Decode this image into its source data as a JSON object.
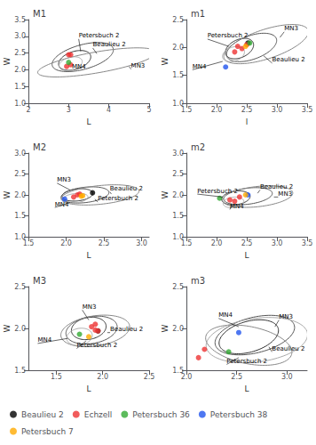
{
  "chart_data": [
    {
      "type": "scatter",
      "title": "M1",
      "xlabel": "L",
      "ylabel": "W",
      "xlim": [
        2,
        5
      ],
      "ylim": [
        1.0,
        3.5
      ],
      "xticks": [
        2,
        3,
        4,
        5
      ],
      "yticks": [
        {
          "value": 1.0,
          "label": "1.0"
        },
        1.5,
        {
          "value": 2.0,
          "label": "2.0"
        },
        2.5,
        {
          "value": 3.0,
          "label": "3.0"
        },
        3.5
      ],
      "grid": false,
      "legend": "lower left",
      "marker": "circle",
      "series": [
        {
          "name": "Beaulieu 2",
          "color": "#000000",
          "x": [],
          "y": []
        },
        {
          "name": "Echzell",
          "color": "#ee3333",
          "x": [
            3.0,
            3.05,
            3.05,
            2.95
          ],
          "y": [
            2.45,
            2.45,
            2.15,
            2.1
          ]
        },
        {
          "name": "Petersbuch 36",
          "color": "#33aa33",
          "x": [
            3.0
          ],
          "y": [
            2.22
          ]
        },
        {
          "name": "Petersbuch 38",
          "color": "#2255ee",
          "x": [],
          "y": []
        },
        {
          "name": "Petersbuch 7",
          "color": "#ffaa00",
          "x": [],
          "y": []
        }
      ],
      "ellipses": [
        {
          "cx": 3.15,
          "cy": 2.28,
          "w": 0.85,
          "h": 0.52,
          "angle": 25,
          "color": "#333333"
        },
        {
          "cx": 3.35,
          "cy": 2.38,
          "w": 1.6,
          "h": 0.72,
          "angle": 20,
          "color": "#555555"
        },
        {
          "cx": 3.7,
          "cy": 2.22,
          "w": 3.0,
          "h": 0.62,
          "angle": 12,
          "color": "#888888"
        },
        {
          "cx": 3.05,
          "cy": 2.18,
          "w": 0.6,
          "h": 0.38,
          "angle": 22,
          "color": "#aaaaaa"
        }
      ],
      "annotations": [
        {
          "text": "Petersbuch 2",
          "x": 3.25,
          "y": 2.92,
          "point_x": 3.3,
          "point_y": 2.55
        },
        {
          "text": "Beaulieu 2",
          "x": 3.6,
          "y": 2.65,
          "point_x": 3.7,
          "point_y": 2.48
        },
        {
          "text": "MN3",
          "x": 4.55,
          "y": 2.02,
          "point_x": 4.5,
          "point_y": 2.1
        },
        {
          "text": "MN4",
          "x": 3.08,
          "y": 2.0
        }
      ]
    },
    {
      "type": "scatter",
      "title": "m1",
      "xlabel": "l",
      "ylabel": "W",
      "xlim": [
        1.5,
        3.5
      ],
      "ylim": [
        1.0,
        2.5
      ],
      "xticks": [
        1.5,
        {
          "value": 2.0,
          "label": "2.0"
        },
        2.5,
        {
          "value": 3.0,
          "label": "3.0"
        },
        3.5
      ],
      "yticks": [
        {
          "value": 1.0,
          "label": "1.0"
        },
        1.5,
        {
          "value": 2.0,
          "label": "2.0"
        },
        2.5
      ],
      "grid": false,
      "legend": "lower left",
      "marker": "circle",
      "series": [
        {
          "name": "Beaulieu 2",
          "color": "#000000",
          "x": [
            2.52
          ],
          "y": [
            2.08
          ]
        },
        {
          "name": "Echzell",
          "color": "#ee3333",
          "x": [
            2.35,
            2.42,
            2.3,
            2.5
          ],
          "y": [
            2.02,
            1.98,
            1.92,
            2.05
          ]
        },
        {
          "name": "Petersbuch 36",
          "color": "#33aa33",
          "x": [
            2.55
          ],
          "y": [
            2.08
          ]
        },
        {
          "name": "Petersbuch 38",
          "color": "#2255ee",
          "x": [
            2.15
          ],
          "y": [
            1.65
          ]
        },
        {
          "name": "Petersbuch 7",
          "color": "#ffaa00",
          "x": [
            2.48
          ],
          "y": [
            2.02
          ]
        }
      ],
      "ellipses": [
        {
          "cx": 2.38,
          "cy": 1.98,
          "w": 0.5,
          "h": 0.32,
          "angle": 28,
          "color": "#333333"
        },
        {
          "cx": 2.58,
          "cy": 2.0,
          "w": 0.88,
          "h": 0.42,
          "angle": 22,
          "color": "#555555"
        },
        {
          "cx": 2.82,
          "cy": 2.06,
          "w": 1.48,
          "h": 0.52,
          "angle": 20,
          "color": "#888888"
        },
        {
          "cx": 2.28,
          "cy": 1.88,
          "w": 0.38,
          "h": 0.25,
          "angle": 22,
          "color": "#aaaaaa"
        }
      ],
      "annotations": [
        {
          "text": "Petersbuch 2",
          "x": 1.85,
          "y": 2.15,
          "point_x": 2.2,
          "point_y": 2.02
        },
        {
          "text": "Beaulieu 2",
          "x": 2.92,
          "y": 1.72,
          "point_x": 2.78,
          "point_y": 1.85
        },
        {
          "text": "MN3",
          "x": 3.12,
          "y": 2.28,
          "point_x": 3.05,
          "point_y": 2.18
        },
        {
          "text": "MN4",
          "x": 1.6,
          "y": 1.6,
          "point_x": 2.1,
          "point_y": 1.75
        }
      ]
    },
    {
      "type": "scatter",
      "title": "M2",
      "xlabel": "L",
      "ylabel": "W",
      "xlim": [
        1.5,
        3.1
      ],
      "ylim": [
        1.0,
        3.0
      ],
      "xticks": [
        1.5,
        {
          "value": 2.0,
          "label": "2.0"
        },
        2.5,
        {
          "value": 3.0,
          "label": "3.0"
        }
      ],
      "yticks": [
        {
          "value": 1.0,
          "label": "1.0"
        },
        1.5,
        {
          "value": 2.0,
          "label": "2.0"
        },
        2.5,
        {
          "value": 3.0,
          "label": "3.0"
        }
      ],
      "grid": false,
      "legend": "lower left",
      "marker": "circle",
      "series": [
        {
          "name": "Beaulieu 2",
          "color": "#000000",
          "x": [
            2.35
          ],
          "y": [
            2.05
          ]
        },
        {
          "name": "Echzell",
          "color": "#ee3333",
          "x": [
            2.15,
            2.1,
            2.18
          ],
          "y": [
            2.0,
            1.95,
            2.02
          ]
        },
        {
          "name": "Petersbuch 36",
          "color": "#33aa33",
          "x": [],
          "y": []
        },
        {
          "name": "Petersbuch 38",
          "color": "#2255ee",
          "x": [
            1.98
          ],
          "y": [
            1.9
          ]
        },
        {
          "name": "Petersbuch 7",
          "color": "#ffaa00",
          "x": [
            2.22,
            2.2
          ],
          "y": [
            1.98,
            1.97
          ]
        }
      ],
      "ellipses": [
        {
          "cx": 2.15,
          "cy": 2.0,
          "w": 0.42,
          "h": 0.28,
          "angle": 18,
          "color": "#333333"
        },
        {
          "cx": 2.25,
          "cy": 2.0,
          "w": 0.65,
          "h": 0.36,
          "angle": 15,
          "color": "#555555"
        },
        {
          "cx": 2.45,
          "cy": 2.0,
          "w": 1.05,
          "h": 0.44,
          "angle": 12,
          "color": "#888888"
        },
        {
          "cx": 2.12,
          "cy": 1.92,
          "w": 0.35,
          "h": 0.22,
          "angle": 18,
          "color": "#aaaaaa"
        }
      ],
      "annotations": [
        {
          "text": "MN3",
          "x": 1.88,
          "y": 2.28,
          "point_x": 2.05,
          "point_y": 2.12
        },
        {
          "text": "Petersbuch 2",
          "x": 2.42,
          "y": 1.83,
          "point_x": 2.38,
          "point_y": 1.9
        },
        {
          "text": "Beaulieu 2",
          "x": 2.58,
          "y": 2.07,
          "point_x": 2.6,
          "point_y": 2.02
        },
        {
          "text": "MN4",
          "x": 1.85,
          "y": 1.7,
          "point_x": 2.05,
          "point_y": 1.82
        }
      ]
    },
    {
      "type": "scatter",
      "title": "m2",
      "xlabel": "L",
      "ylabel": "W",
      "xlim": [
        1.5,
        3.5
      ],
      "ylim": [
        1.0,
        3.0
      ],
      "xticks": [
        1.5,
        {
          "value": 2.0,
          "label": "2.0"
        },
        2.5,
        {
          "value": 3.0,
          "label": "3.0"
        },
        3.5
      ],
      "yticks": [
        {
          "value": 1.0,
          "label": "1.0"
        },
        1.5,
        {
          "value": 2.0,
          "label": "2.0"
        },
        2.5,
        {
          "value": 3.0,
          "label": "3.0"
        }
      ],
      "grid": false,
      "legend": "lower left",
      "marker": "circle",
      "series": [
        {
          "name": "Beaulieu 2",
          "color": "#000000",
          "x": [],
          "y": []
        },
        {
          "name": "Echzell",
          "color": "#ee3333",
          "x": [
            2.22,
            2.3,
            2.38
          ],
          "y": [
            1.88,
            1.85,
            1.95
          ]
        },
        {
          "name": "Petersbuch 36",
          "color": "#33aa33",
          "x": [
            2.05
          ],
          "y": [
            1.92
          ]
        },
        {
          "name": "Petersbuch 38",
          "color": "#2255ee",
          "x": [
            2.52
          ],
          "y": [
            2.0
          ]
        },
        {
          "name": "Petersbuch 7",
          "color": "#ffaa00",
          "x": [
            2.48
          ],
          "y": [
            2.0
          ]
        }
      ],
      "ellipses": [
        {
          "cx": 2.32,
          "cy": 1.93,
          "w": 0.48,
          "h": 0.32,
          "angle": 15,
          "color": "#333333"
        },
        {
          "cx": 2.52,
          "cy": 1.97,
          "w": 0.82,
          "h": 0.38,
          "angle": 12,
          "color": "#555555"
        },
        {
          "cx": 2.68,
          "cy": 1.96,
          "w": 1.18,
          "h": 0.48,
          "angle": 10,
          "color": "#888888"
        },
        {
          "cx": 2.28,
          "cy": 1.82,
          "w": 0.35,
          "h": 0.25,
          "angle": 15,
          "color": "#aaaaaa"
        }
      ],
      "annotations": [
        {
          "text": "Petersbuch 2",
          "x": 1.68,
          "y": 2.02,
          "point_x": 2.1,
          "point_y": 1.95
        },
        {
          "text": "Beaulieu 2",
          "x": 2.72,
          "y": 2.12,
          "point_x": 2.68,
          "point_y": 2.04
        },
        {
          "text": "MN3",
          "x": 3.02,
          "y": 1.95,
          "point_x": 2.95,
          "point_y": 1.95
        },
        {
          "text": "MN4",
          "x": 2.22,
          "y": 1.65,
          "point_x": 2.25,
          "point_y": 1.75
        }
      ]
    },
    {
      "type": "scatter",
      "title": "M3",
      "xlabel": "L",
      "ylabel": "W",
      "xlim": [
        1.2,
        2.5
      ],
      "ylim": [
        1.5,
        2.5
      ],
      "xticks": [
        1.5,
        {
          "value": 2.0,
          "label": "2.0"
        },
        2.5
      ],
      "yticks": [
        1.5,
        {
          "value": 2.0,
          "label": "2.0"
        },
        2.5
      ],
      "grid": false,
      "legend": "lower left",
      "marker": "circle",
      "series": [
        {
          "name": "Beaulieu 2",
          "color": "#000000",
          "x": [
            1.95
          ],
          "y": [
            1.97
          ]
        },
        {
          "name": "Echzell",
          "color": "#ee3333",
          "x": [
            1.88,
            1.92,
            1.95,
            1.92
          ],
          "y": [
            2.02,
            2.05,
            1.97,
            1.98
          ]
        },
        {
          "name": "Petersbuch 36",
          "color": "#33aa33",
          "x": [
            1.75
          ],
          "y": [
            1.93
          ]
        },
        {
          "name": "Petersbuch 38",
          "color": "#2255ee",
          "x": [],
          "y": []
        },
        {
          "name": "Petersbuch 7",
          "color": "#ffaa00",
          "x": [
            1.85
          ],
          "y": [
            1.9
          ]
        }
      ],
      "ellipses": [
        {
          "cx": 1.85,
          "cy": 2.0,
          "w": 0.38,
          "h": 0.26,
          "angle": 14,
          "color": "#333333"
        },
        {
          "cx": 1.88,
          "cy": 1.98,
          "w": 0.56,
          "h": 0.32,
          "angle": 12,
          "color": "#555555"
        },
        {
          "cx": 1.92,
          "cy": 1.97,
          "w": 0.75,
          "h": 0.36,
          "angle": 10,
          "color": "#888888"
        },
        {
          "cx": 1.75,
          "cy": 1.9,
          "w": 0.28,
          "h": 0.2,
          "angle": 14,
          "color": "#aaaaaa"
        }
      ],
      "annotations": [
        {
          "text": "MN3",
          "x": 1.78,
          "y": 2.22,
          "point_x": 1.85,
          "point_y": 2.1
        },
        {
          "text": "Beaulieu 2",
          "x": 2.08,
          "y": 1.95,
          "point_x": 2.05,
          "point_y": 1.95
        },
        {
          "text": "Petersbuch 2",
          "x": 1.72,
          "y": 1.76,
          "point_x": 1.82,
          "point_y": 1.85
        },
        {
          "text": "MN4",
          "x": 1.3,
          "y": 1.82,
          "point_x": 1.62,
          "point_y": 1.88
        }
      ]
    },
    {
      "type": "scatter",
      "title": "m3",
      "xlabel": "L",
      "ylabel": "W",
      "xlim": [
        2.0,
        3.2
      ],
      "ylim": [
        1.5,
        2.5
      ],
      "xticks": [
        {
          "value": 2.0,
          "label": "2.0"
        },
        2.5,
        {
          "value": 3.0,
          "label": "3.0"
        }
      ],
      "yticks": [
        1.5,
        {
          "value": 2.0,
          "label": "2.0"
        },
        2.5
      ],
      "grid": false,
      "legend": "lower left",
      "marker": "circle",
      "series": [
        {
          "name": "Beaulieu 2",
          "color": "#000000",
          "x": [],
          "y": []
        },
        {
          "name": "Echzell",
          "color": "#ee3333",
          "x": [
            2.18,
            2.12
          ],
          "y": [
            1.75,
            1.65
          ]
        },
        {
          "name": "Petersbuch 36",
          "color": "#33aa33",
          "x": [
            2.42
          ],
          "y": [
            1.72
          ]
        },
        {
          "name": "Petersbuch 38",
          "color": "#2255ee",
          "x": [
            2.52
          ],
          "y": [
            1.95
          ]
        },
        {
          "name": "Petersbuch 7",
          "color": "#ffaa00",
          "x": [],
          "y": []
        }
      ],
      "ellipses": [
        {
          "cx": 2.62,
          "cy": 1.9,
          "w": 0.62,
          "h": 0.36,
          "angle": 22,
          "color": "#333333"
        },
        {
          "cx": 2.68,
          "cy": 1.92,
          "w": 0.82,
          "h": 0.42,
          "angle": 18,
          "color": "#555555"
        },
        {
          "cx": 2.62,
          "cy": 1.8,
          "w": 0.88,
          "h": 0.44,
          "angle": -15,
          "color": "#888888"
        },
        {
          "cx": 2.7,
          "cy": 1.86,
          "w": 1.02,
          "h": 0.52,
          "angle": 10,
          "color": "#aaaaaa"
        }
      ],
      "annotations": [
        {
          "text": "MN4",
          "x": 2.32,
          "y": 2.12,
          "point_x": 2.52,
          "point_y": 2.02
        },
        {
          "text": "MN3",
          "x": 2.92,
          "y": 2.1,
          "point_x": 2.88,
          "point_y": 2.02
        },
        {
          "text": "Beaulieu 2",
          "x": 2.85,
          "y": 1.72,
          "point_x": 2.82,
          "point_y": 1.78
        },
        {
          "text": "Petersbuch 2",
          "x": 2.4,
          "y": 1.57,
          "point_x": 2.52,
          "point_y": 1.65
        }
      ]
    }
  ]
}
